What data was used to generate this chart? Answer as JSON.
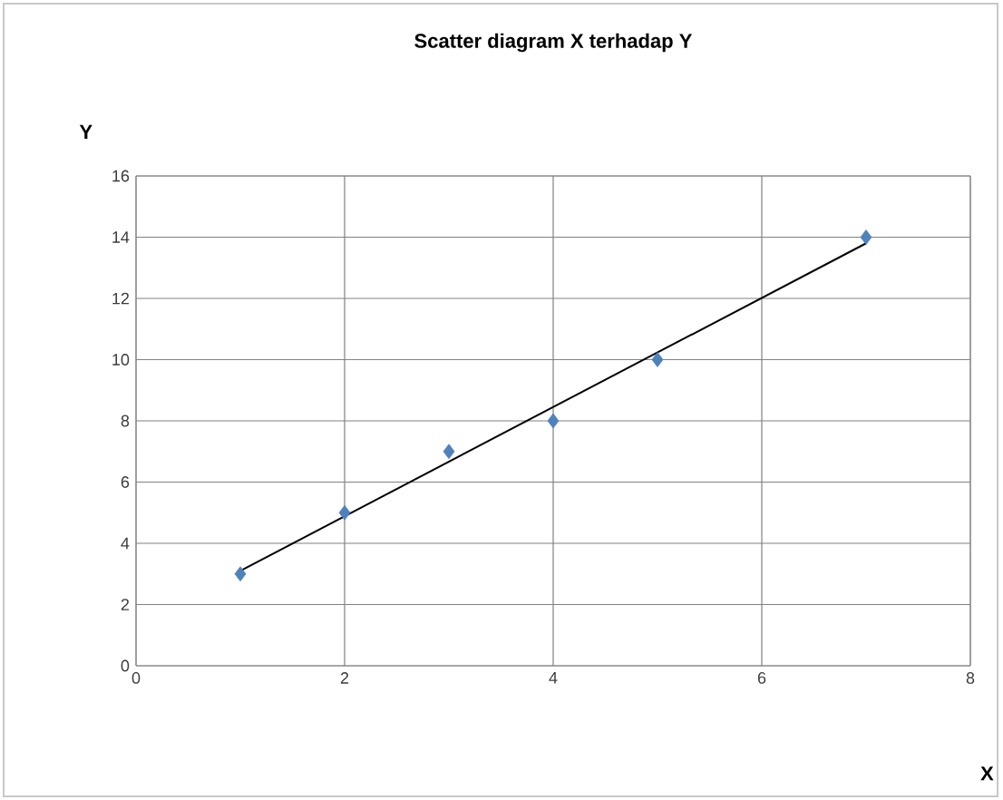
{
  "chart_data": {
    "type": "scatter",
    "title": "Scatter diagram X terhadap Y",
    "xlabel": "X",
    "ylabel": "Y",
    "xlim": [
      0,
      8
    ],
    "ylim": [
      0,
      16
    ],
    "xticks": [
      0,
      2,
      4,
      6,
      8
    ],
    "yticks": [
      0,
      2,
      4,
      6,
      8,
      10,
      12,
      14,
      16
    ],
    "grid": true,
    "marker": "diamond",
    "series": [
      {
        "color": "#4f81bd",
        "x": [
          1,
          2,
          3,
          4,
          5,
          7
        ],
        "values": [
          3,
          5,
          7,
          8,
          10,
          14
        ]
      },
      {
        "type": "line",
        "color": "#000000",
        "x": [
          1,
          7
        ],
        "values": [
          3.1,
          13.8
        ],
        "marker": "none",
        "line_style": "solid"
      }
    ]
  }
}
